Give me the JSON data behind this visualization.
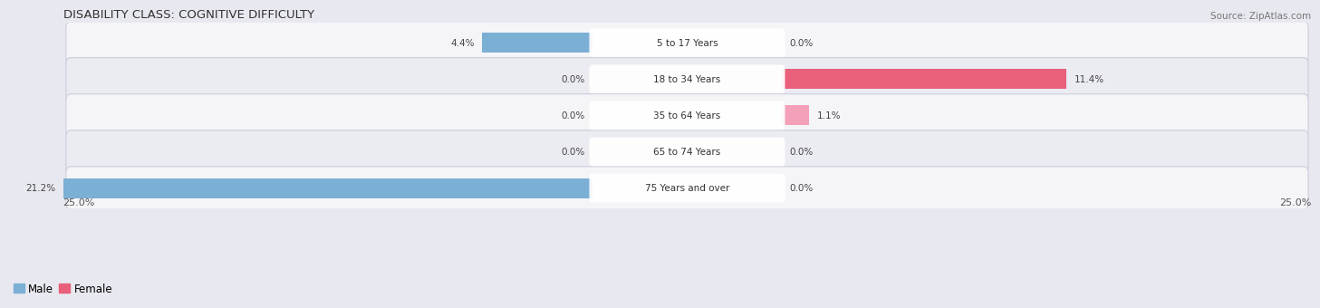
{
  "title": "DISABILITY CLASS: COGNITIVE DIFFICULTY",
  "source": "Source: ZipAtlas.com",
  "categories": [
    "5 to 17 Years",
    "18 to 34 Years",
    "35 to 64 Years",
    "65 to 74 Years",
    "75 Years and over"
  ],
  "male_values": [
    4.4,
    0.0,
    0.0,
    0.0,
    21.2
  ],
  "female_values": [
    0.0,
    11.4,
    1.1,
    0.0,
    0.0
  ],
  "male_color": "#7bafd4",
  "female_color_large": "#e8607a",
  "female_color_small": "#f4a0b8",
  "axis_max": 25.0,
  "bg_color": "#e8e8f0",
  "row_color_odd": "#f5f5f8",
  "row_color_even": "#ebebf2",
  "title_fontsize": 9.5,
  "source_fontsize": 7.5,
  "value_fontsize": 7.5,
  "cat_fontsize": 7.5,
  "legend_fontsize": 8.5,
  "axis_label_fontsize": 8
}
